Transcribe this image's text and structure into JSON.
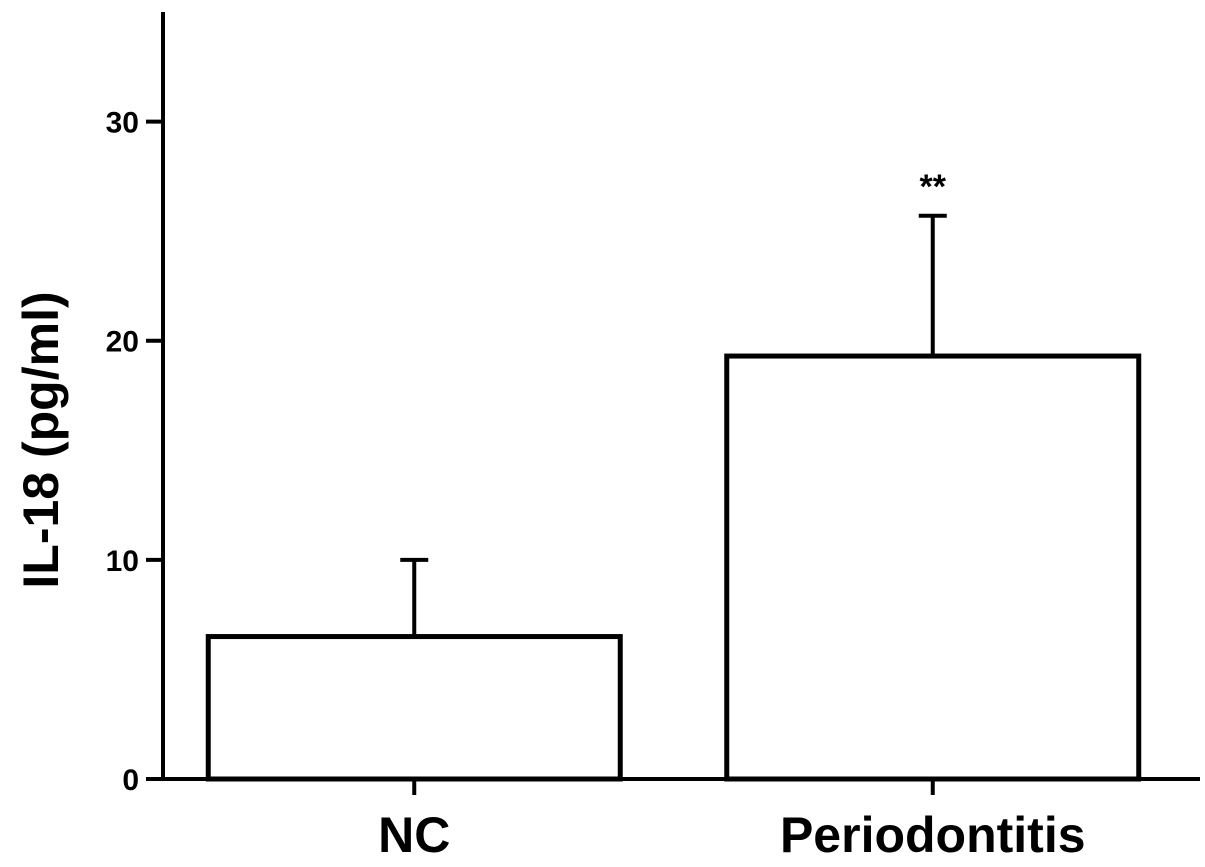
{
  "chart_data": {
    "type": "bar",
    "title": "",
    "xlabel": "",
    "ylabel": "IL-18 (pg/ml)",
    "ylim": [
      0,
      35
    ],
    "yticks": [
      0,
      10,
      20,
      30
    ],
    "ytick_labels": [
      "0",
      "10",
      "20",
      "30"
    ],
    "grid": false,
    "legend": "none",
    "categories": [
      "NC",
      "Periodontitis"
    ],
    "values": [
      6.5,
      19.3
    ],
    "error_upper": [
      3.5,
      6.4
    ],
    "annotations": [
      "",
      "**"
    ],
    "bar_fill": "#ffffff",
    "bar_stroke": "#000000"
  }
}
